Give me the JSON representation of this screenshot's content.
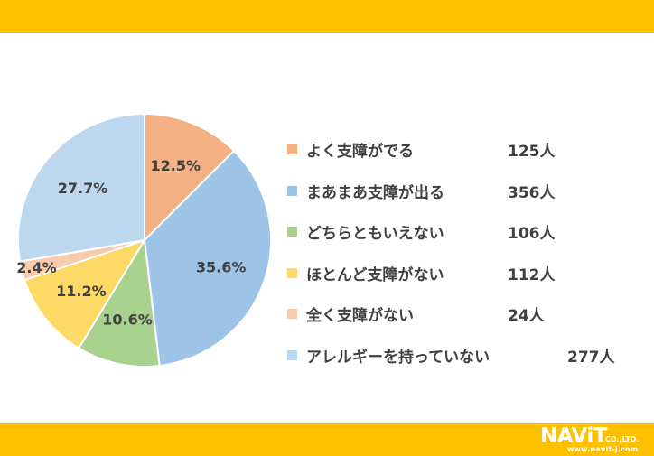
{
  "chart_data": {
    "type": "pie",
    "slices": [
      {
        "label": "よく支障がでる",
        "percent_label": "12.5%",
        "value": 125,
        "count_label": "125人",
        "color": "#f4b183"
      },
      {
        "label": "まあまあ支障が出る",
        "percent_label": "35.6%",
        "value": 356,
        "count_label": "356人",
        "color": "#9dc3e6"
      },
      {
        "label": "どちらともいえない",
        "percent_label": "10.6%",
        "value": 106,
        "count_label": "106人",
        "color": "#a9d18e"
      },
      {
        "label": "ほとんど支障がない",
        "percent_label": "11.2%",
        "value": 112,
        "count_label": "112人",
        "color": "#ffd966"
      },
      {
        "label": "全く支障がない",
        "percent_label": "2.4%",
        "value": 24,
        "count_label": "24人",
        "color": "#f8cbad"
      },
      {
        "label": "アレルギーを持っていない",
        "percent_label": "27.7%",
        "value": 277,
        "count_label": "277人",
        "color": "#bdd7ee"
      }
    ],
    "legend_position": "right"
  },
  "branding": {
    "logo_name": "NAViT",
    "logo_suffix": "CO.,LTD.",
    "logo_url": "www.navit-j.com",
    "band_color": "#ffc000"
  }
}
